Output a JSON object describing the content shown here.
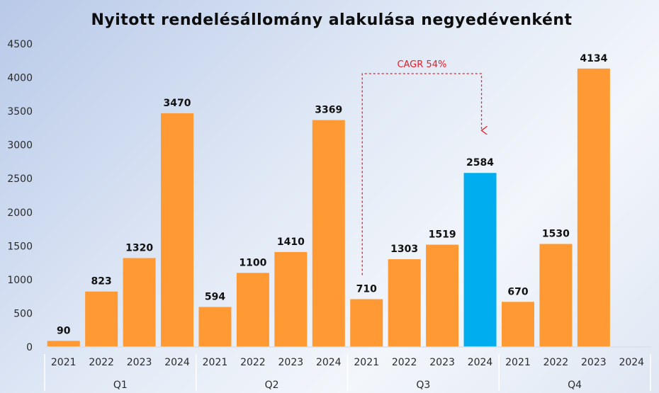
{
  "chart_data": {
    "type": "bar",
    "title": "Nyitott rendelésállomány alakulása negyedévenként",
    "xlabel": "",
    "ylabel": "",
    "ylim": [
      0,
      4500
    ],
    "yticks": [
      0,
      500,
      1000,
      1500,
      2000,
      2500,
      3000,
      3500,
      4000,
      4500
    ],
    "grid": false,
    "legend": "none",
    "groups": [
      {
        "label": "Q1",
        "categories": [
          "2021",
          "2022",
          "2023",
          "2024"
        ],
        "values": [
          90,
          823,
          1320,
          3470
        ]
      },
      {
        "label": "Q2",
        "categories": [
          "2021",
          "2022",
          "2023",
          "2024"
        ],
        "values": [
          594,
          1100,
          1410,
          3369
        ]
      },
      {
        "label": "Q3",
        "categories": [
          "2021",
          "2022",
          "2023",
          "2024"
        ],
        "values": [
          710,
          1303,
          1519,
          2584
        ]
      },
      {
        "label": "Q4",
        "categories": [
          "2021",
          "2022",
          "2023",
          "2024"
        ],
        "values": [
          670,
          1530,
          4134,
          null
        ]
      }
    ],
    "highlight": {
      "group": "Q3",
      "category": "2024"
    },
    "colors": {
      "bar": "#FF9933",
      "highlight": "#00AEEF",
      "annotation": "#E0202A",
      "text": "#111111"
    },
    "annotation": {
      "text": "CAGR  54%",
      "from": {
        "group": "Q3",
        "category": "2021"
      },
      "to": {
        "group": "Q3",
        "category": "2024"
      }
    }
  }
}
